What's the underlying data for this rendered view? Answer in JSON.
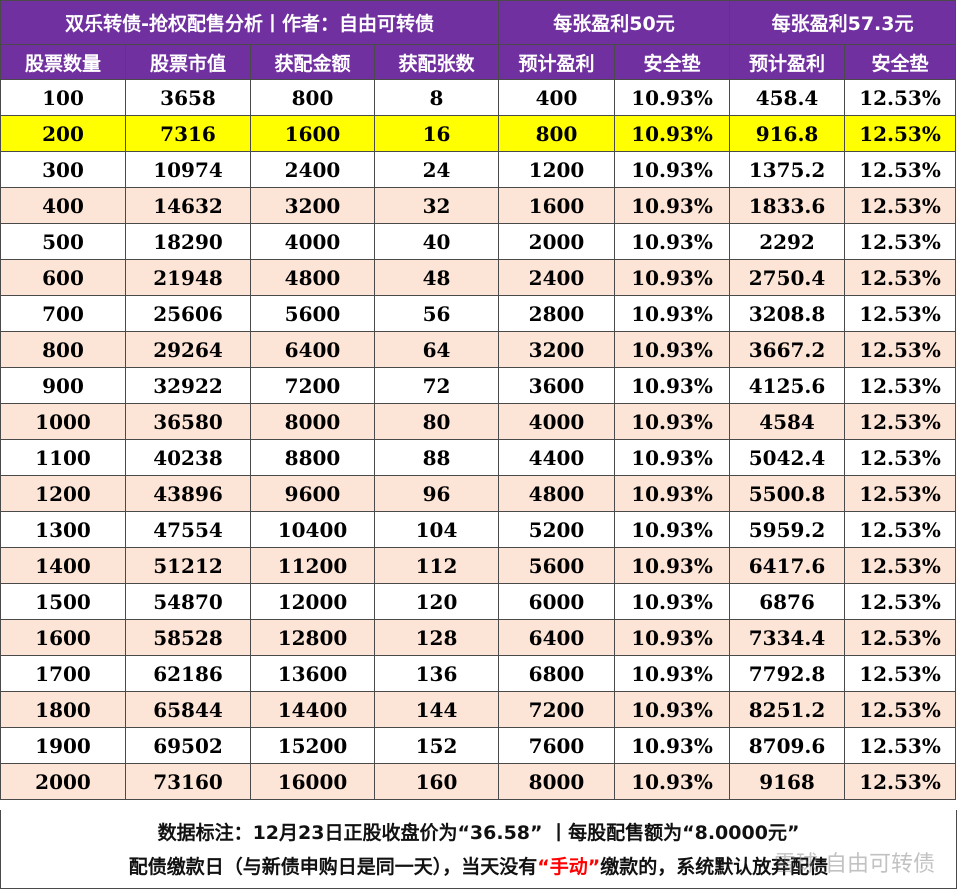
{
  "header": {
    "main_title": "双乐转债-抢权配售分析丨作者：自由可转债",
    "group1_title": "每张盈利50元",
    "group2_title": "每张盈利57.3元",
    "columns": [
      "股票数量",
      "股票市值",
      "获配金额",
      "获配张数",
      "预计盈利",
      "安全垫",
      "预计盈利",
      "安全垫"
    ]
  },
  "rows": [
    [
      "100",
      "3658",
      "800",
      "8",
      "400",
      "10.93%",
      "458.4",
      "12.53%"
    ],
    [
      "200",
      "7316",
      "1600",
      "16",
      "800",
      "10.93%",
      "916.8",
      "12.53%"
    ],
    [
      "300",
      "10974",
      "2400",
      "24",
      "1200",
      "10.93%",
      "1375.2",
      "12.53%"
    ],
    [
      "400",
      "14632",
      "3200",
      "32",
      "1600",
      "10.93%",
      "1833.6",
      "12.53%"
    ],
    [
      "500",
      "18290",
      "4000",
      "40",
      "2000",
      "10.93%",
      "2292",
      "12.53%"
    ],
    [
      "600",
      "21948",
      "4800",
      "48",
      "2400",
      "10.93%",
      "2750.4",
      "12.53%"
    ],
    [
      "700",
      "25606",
      "5600",
      "56",
      "2800",
      "10.93%",
      "3208.8",
      "12.53%"
    ],
    [
      "800",
      "29264",
      "6400",
      "64",
      "3200",
      "10.93%",
      "3667.2",
      "12.53%"
    ],
    [
      "900",
      "32922",
      "7200",
      "72",
      "3600",
      "10.93%",
      "4125.6",
      "12.53%"
    ],
    [
      "1000",
      "36580",
      "8000",
      "80",
      "4000",
      "10.93%",
      "4584",
      "12.53%"
    ],
    [
      "1100",
      "40238",
      "8800",
      "88",
      "4400",
      "10.93%",
      "5042.4",
      "12.53%"
    ],
    [
      "1200",
      "43896",
      "9600",
      "96",
      "4800",
      "10.93%",
      "5500.8",
      "12.53%"
    ],
    [
      "1300",
      "47554",
      "10400",
      "104",
      "5200",
      "10.93%",
      "5959.2",
      "12.53%"
    ],
    [
      "1400",
      "51212",
      "11200",
      "112",
      "5600",
      "10.93%",
      "6417.6",
      "12.53%"
    ],
    [
      "1500",
      "54870",
      "12000",
      "120",
      "6000",
      "10.93%",
      "6876",
      "12.53%"
    ],
    [
      "1600",
      "58528",
      "12800",
      "128",
      "6400",
      "10.93%",
      "7334.4",
      "12.53%"
    ],
    [
      "1700",
      "62186",
      "13600",
      "136",
      "6800",
      "10.93%",
      "7792.8",
      "12.53%"
    ],
    [
      "1800",
      "65844",
      "14400",
      "144",
      "7200",
      "10.93%",
      "8251.2",
      "12.53%"
    ],
    [
      "1900",
      "69502",
      "15200",
      "152",
      "7600",
      "10.93%",
      "8709.6",
      "12.53%"
    ],
    [
      "2000",
      "73160",
      "16000",
      "160",
      "8000",
      "10.93%",
      "9168",
      "12.53%"
    ]
  ],
  "highlighted_row": 1,
  "notes": {
    "line1": "数据标注：12月23日正股收盘价为“36.58” 丨每股配售额为“8.0000元”",
    "line2_before": "配债缴款日（与新债申购日是同一天），当天没有",
    "line2_red": "“手动”",
    "line2_after": "缴款的，系统默认放弃配债"
  },
  "watermark": "雪球 自由可转债",
  "colors": {
    "header_bg": "#7030a0",
    "header_text": "#ffffff",
    "row_alt_bg": "#fce4d6",
    "highlight_bg": "#ffff00",
    "emphasis_text": "#ff0000"
  }
}
